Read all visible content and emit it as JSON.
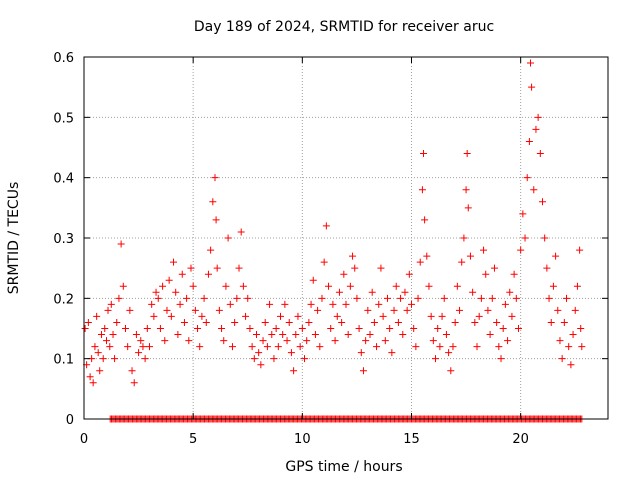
{
  "chart_data": {
    "type": "scatter",
    "title": "Day 189 of 2024, SRMTID for receiver aruc",
    "xlabel": "GPS time / hours",
    "ylabel": "SRMTID / TECUs",
    "xlim": [
      0,
      24
    ],
    "ylim": [
      0,
      0.6
    ],
    "x_ticks": [
      0,
      5,
      10,
      15,
      20
    ],
    "x_tick_labels": [
      "0",
      "5",
      "10",
      "15",
      "20"
    ],
    "y_ticks": [
      0,
      0.1,
      0.2,
      0.3,
      0.4,
      0.5,
      0.6
    ],
    "y_tick_labels": [
      "0",
      "0.1",
      "0.2",
      "0.3",
      "0.4",
      "0.5",
      "0.6"
    ],
    "grid": true,
    "marker": "+",
    "series": [
      {
        "name": "SRMTID",
        "color": "#ff0000",
        "points": [
          [
            0.05,
            0.15
          ],
          [
            0.12,
            0.09
          ],
          [
            0.2,
            0.16
          ],
          [
            0.28,
            0.07
          ],
          [
            0.35,
            0.1
          ],
          [
            0.42,
            0.06
          ],
          [
            0.5,
            0.12
          ],
          [
            0.58,
            0.17
          ],
          [
            0.65,
            0.11
          ],
          [
            0.72,
            0.08
          ],
          [
            0.8,
            0.14
          ],
          [
            0.88,
            0.1
          ],
          [
            0.95,
            0.15
          ],
          [
            1.03,
            0.13
          ],
          [
            1.1,
            0.18
          ],
          [
            1.18,
            0.12
          ],
          [
            1.25,
            0.19
          ],
          [
            1.33,
            0.14
          ],
          [
            1.4,
            0.1
          ],
          [
            1.5,
            0.16
          ],
          [
            1.6,
            0.2
          ],
          [
            1.7,
            0.29
          ],
          [
            1.8,
            0.22
          ],
          [
            1.9,
            0.15
          ],
          [
            2.0,
            0.12
          ],
          [
            2.1,
            0.18
          ],
          [
            2.2,
            0.08
          ],
          [
            2.3,
            0.06
          ],
          [
            2.4,
            0.14
          ],
          [
            2.5,
            0.11
          ],
          [
            2.6,
            0.13
          ],
          [
            2.7,
            0.12
          ],
          [
            2.8,
            0.1
          ],
          [
            2.9,
            0.15
          ],
          [
            3.0,
            0.12
          ],
          [
            3.1,
            0.19
          ],
          [
            3.2,
            0.17
          ],
          [
            3.3,
            0.21
          ],
          [
            3.4,
            0.2
          ],
          [
            3.5,
            0.15
          ],
          [
            3.6,
            0.22
          ],
          [
            3.7,
            0.13
          ],
          [
            3.8,
            0.18
          ],
          [
            3.9,
            0.23
          ],
          [
            4.0,
            0.17
          ],
          [
            4.1,
            0.26
          ],
          [
            4.2,
            0.21
          ],
          [
            4.3,
            0.14
          ],
          [
            4.4,
            0.19
          ],
          [
            4.5,
            0.24
          ],
          [
            4.6,
            0.16
          ],
          [
            4.7,
            0.2
          ],
          [
            4.8,
            0.13
          ],
          [
            4.9,
            0.25
          ],
          [
            5.0,
            0.22
          ],
          [
            5.1,
            0.18
          ],
          [
            5.2,
            0.15
          ],
          [
            5.3,
            0.12
          ],
          [
            5.4,
            0.17
          ],
          [
            5.5,
            0.2
          ],
          [
            5.6,
            0.16
          ],
          [
            5.7,
            0.24
          ],
          [
            5.8,
            0.28
          ],
          [
            5.9,
            0.36
          ],
          [
            6.0,
            0.4
          ],
          [
            6.05,
            0.33
          ],
          [
            6.1,
            0.25
          ],
          [
            6.2,
            0.18
          ],
          [
            6.3,
            0.15
          ],
          [
            6.4,
            0.13
          ],
          [
            6.5,
            0.22
          ],
          [
            6.6,
            0.3
          ],
          [
            6.7,
            0.19
          ],
          [
            6.8,
            0.12
          ],
          [
            6.9,
            0.16
          ],
          [
            7.0,
            0.2
          ],
          [
            7.1,
            0.25
          ],
          [
            7.2,
            0.31
          ],
          [
            7.3,
            0.22
          ],
          [
            7.4,
            0.17
          ],
          [
            7.5,
            0.2
          ],
          [
            7.6,
            0.15
          ],
          [
            7.7,
            0.12
          ],
          [
            7.8,
            0.1
          ],
          [
            7.9,
            0.14
          ],
          [
            8.0,
            0.11
          ],
          [
            8.1,
            0.09
          ],
          [
            8.2,
            0.13
          ],
          [
            8.3,
            0.16
          ],
          [
            8.4,
            0.12
          ],
          [
            8.5,
            0.19
          ],
          [
            8.6,
            0.14
          ],
          [
            8.7,
            0.1
          ],
          [
            8.8,
            0.15
          ],
          [
            8.9,
            0.12
          ],
          [
            9.0,
            0.17
          ],
          [
            9.1,
            0.14
          ],
          [
            9.2,
            0.19
          ],
          [
            9.3,
            0.13
          ],
          [
            9.4,
            0.16
          ],
          [
            9.5,
            0.11
          ],
          [
            9.6,
            0.08
          ],
          [
            9.7,
            0.14
          ],
          [
            9.8,
            0.17
          ],
          [
            9.9,
            0.12
          ],
          [
            10.0,
            0.15
          ],
          [
            10.1,
            0.1
          ],
          [
            10.2,
            0.13
          ],
          [
            10.3,
            0.16
          ],
          [
            10.4,
            0.19
          ],
          [
            10.5,
            0.23
          ],
          [
            10.6,
            0.14
          ],
          [
            10.7,
            0.18
          ],
          [
            10.8,
            0.12
          ],
          [
            10.9,
            0.2
          ],
          [
            11.0,
            0.26
          ],
          [
            11.1,
            0.32
          ],
          [
            11.2,
            0.22
          ],
          [
            11.3,
            0.15
          ],
          [
            11.4,
            0.19
          ],
          [
            11.5,
            0.13
          ],
          [
            11.6,
            0.17
          ],
          [
            11.7,
            0.21
          ],
          [
            11.8,
            0.16
          ],
          [
            11.9,
            0.24
          ],
          [
            12.0,
            0.19
          ],
          [
            12.1,
            0.14
          ],
          [
            12.2,
            0.22
          ],
          [
            12.3,
            0.27
          ],
          [
            12.4,
            0.25
          ],
          [
            12.5,
            0.2
          ],
          [
            12.6,
            0.15
          ],
          [
            12.7,
            0.11
          ],
          [
            12.8,
            0.08
          ],
          [
            12.9,
            0.13
          ],
          [
            13.0,
            0.18
          ],
          [
            13.1,
            0.14
          ],
          [
            13.2,
            0.21
          ],
          [
            13.3,
            0.16
          ],
          [
            13.4,
            0.12
          ],
          [
            13.5,
            0.19
          ],
          [
            13.6,
            0.25
          ],
          [
            13.7,
            0.17
          ],
          [
            13.8,
            0.13
          ],
          [
            13.9,
            0.2
          ],
          [
            14.0,
            0.15
          ],
          [
            14.1,
            0.11
          ],
          [
            14.2,
            0.18
          ],
          [
            14.3,
            0.22
          ],
          [
            14.4,
            0.16
          ],
          [
            14.5,
            0.2
          ],
          [
            14.6,
            0.14
          ],
          [
            14.7,
            0.21
          ],
          [
            14.8,
            0.18
          ],
          [
            14.9,
            0.24
          ],
          [
            15.0,
            0.19
          ],
          [
            15.1,
            0.15
          ],
          [
            15.2,
            0.12
          ],
          [
            15.3,
            0.2
          ],
          [
            15.4,
            0.26
          ],
          [
            15.5,
            0.38
          ],
          [
            15.55,
            0.44
          ],
          [
            15.6,
            0.33
          ],
          [
            15.7,
            0.27
          ],
          [
            15.8,
            0.22
          ],
          [
            15.9,
            0.17
          ],
          [
            16.0,
            0.13
          ],
          [
            16.1,
            0.1
          ],
          [
            16.2,
            0.15
          ],
          [
            16.3,
            0.12
          ],
          [
            16.4,
            0.17
          ],
          [
            16.5,
            0.2
          ],
          [
            16.6,
            0.14
          ],
          [
            16.7,
            0.11
          ],
          [
            16.8,
            0.08
          ],
          [
            16.9,
            0.12
          ],
          [
            17.0,
            0.16
          ],
          [
            17.1,
            0.22
          ],
          [
            17.2,
            0.18
          ],
          [
            17.3,
            0.26
          ],
          [
            17.4,
            0.3
          ],
          [
            17.5,
            0.38
          ],
          [
            17.55,
            0.44
          ],
          [
            17.6,
            0.35
          ],
          [
            17.7,
            0.27
          ],
          [
            17.8,
            0.21
          ],
          [
            17.9,
            0.16
          ],
          [
            18.0,
            0.12
          ],
          [
            18.1,
            0.17
          ],
          [
            18.2,
            0.2
          ],
          [
            18.3,
            0.28
          ],
          [
            18.4,
            0.24
          ],
          [
            18.5,
            0.18
          ],
          [
            18.6,
            0.14
          ],
          [
            18.7,
            0.2
          ],
          [
            18.8,
            0.25
          ],
          [
            18.9,
            0.16
          ],
          [
            19.0,
            0.12
          ],
          [
            19.1,
            0.1
          ],
          [
            19.2,
            0.15
          ],
          [
            19.3,
            0.19
          ],
          [
            19.4,
            0.13
          ],
          [
            19.5,
            0.21
          ],
          [
            19.6,
            0.17
          ],
          [
            19.7,
            0.24
          ],
          [
            19.8,
            0.2
          ],
          [
            19.9,
            0.15
          ],
          [
            20.0,
            0.28
          ],
          [
            20.1,
            0.34
          ],
          [
            20.2,
            0.3
          ],
          [
            20.3,
            0.4
          ],
          [
            20.4,
            0.46
          ],
          [
            20.45,
            0.59
          ],
          [
            20.5,
            0.55
          ],
          [
            20.6,
            0.38
          ],
          [
            20.7,
            0.48
          ],
          [
            20.8,
            0.5
          ],
          [
            20.9,
            0.44
          ],
          [
            21.0,
            0.36
          ],
          [
            21.1,
            0.3
          ],
          [
            21.2,
            0.25
          ],
          [
            21.3,
            0.2
          ],
          [
            21.4,
            0.16
          ],
          [
            21.5,
            0.22
          ],
          [
            21.6,
            0.27
          ],
          [
            21.7,
            0.18
          ],
          [
            21.8,
            0.13
          ],
          [
            21.9,
            0.1
          ],
          [
            22.0,
            0.16
          ],
          [
            22.1,
            0.2
          ],
          [
            22.2,
            0.12
          ],
          [
            22.3,
            0.09
          ],
          [
            22.4,
            0.14
          ],
          [
            22.5,
            0.18
          ],
          [
            22.6,
            0.22
          ],
          [
            22.7,
            0.28
          ],
          [
            22.75,
            0.15
          ],
          [
            22.8,
            0.12
          ]
        ]
      }
    ],
    "zero_band": {
      "x_from": 1.2,
      "x_to": 22.8,
      "y": 0
    }
  }
}
